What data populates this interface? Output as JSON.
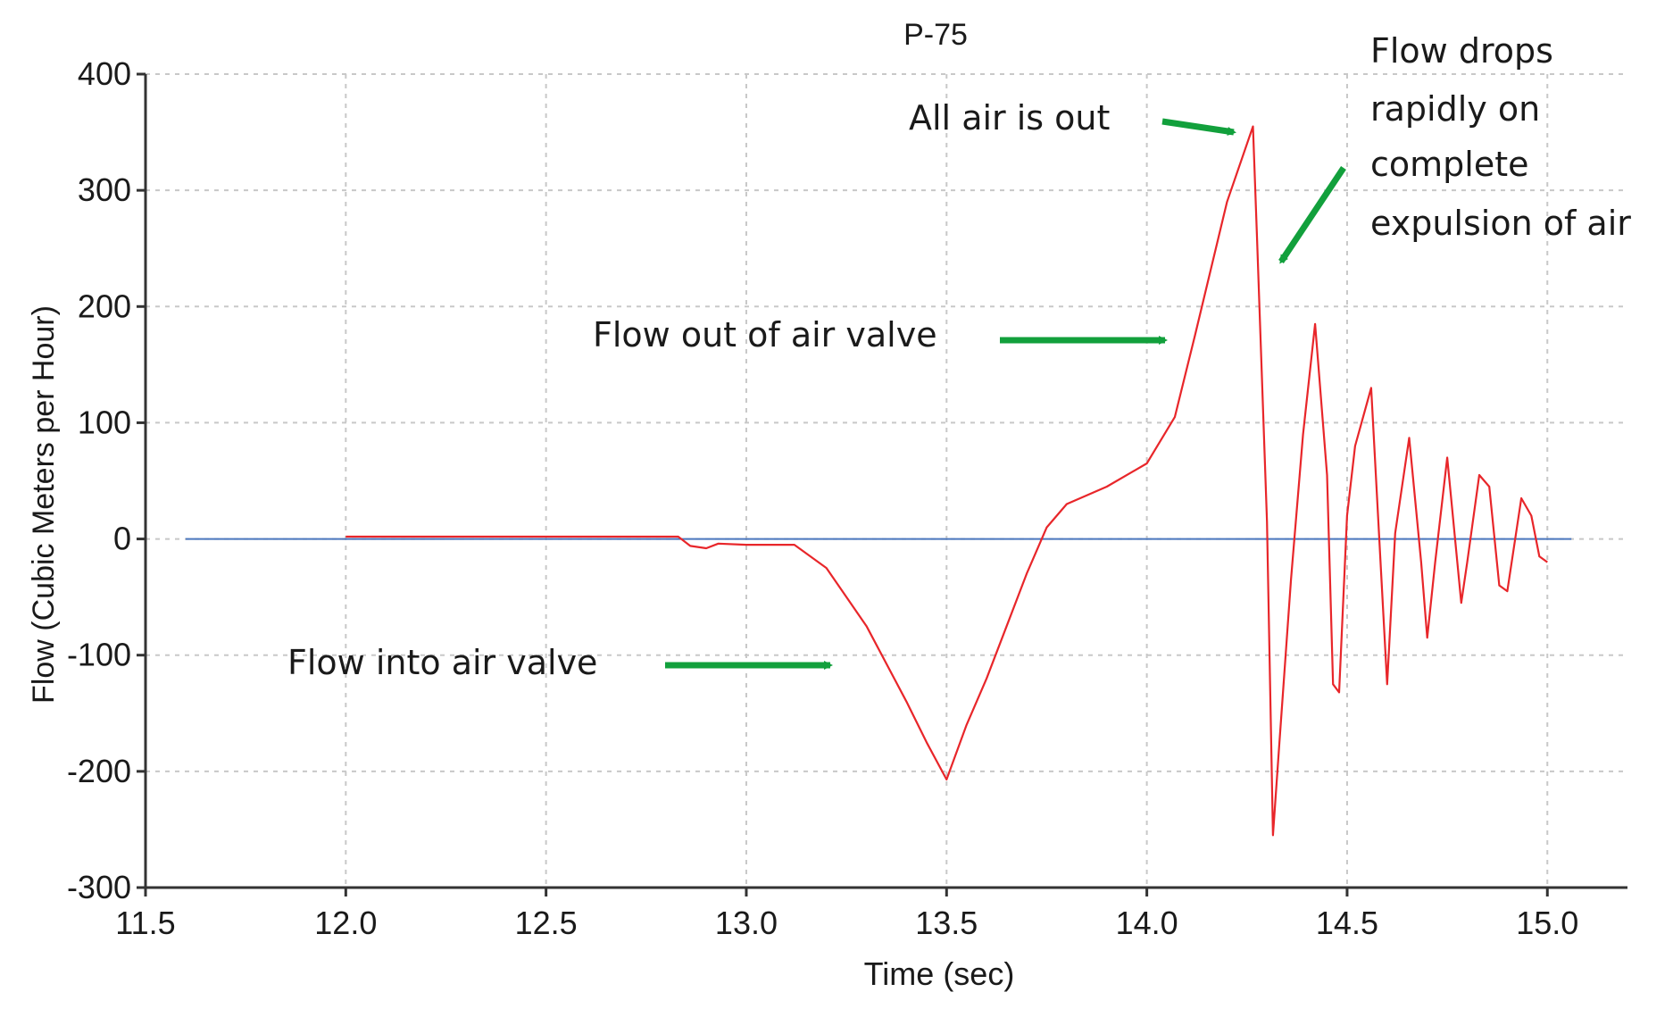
{
  "chart_data": {
    "type": "line",
    "title": "P-75",
    "xlabel": "Time (sec)",
    "ylabel": "Flow (Cubic Meters per Hour)",
    "xlim": [
      11.5,
      15.2
    ],
    "ylim": [
      -300,
      400
    ],
    "x_ticks": [
      11.5,
      12.0,
      12.5,
      13.0,
      13.5,
      14.0,
      14.5,
      15.0
    ],
    "x_tick_labels": [
      "11.5",
      "12.0",
      "12.5",
      "13.0",
      "13.5",
      "14.0",
      "14.5",
      "15.0"
    ],
    "y_ticks": [
      -300,
      -200,
      -100,
      0,
      100,
      200,
      300,
      400
    ],
    "y_tick_labels": [
      "-300",
      "-200",
      "-100",
      "0",
      "100",
      "200",
      "300",
      "400"
    ],
    "grid": true,
    "series": [
      {
        "color": "#e8262a",
        "points": [
          [
            12.0,
            2
          ],
          [
            12.83,
            2
          ],
          [
            12.86,
            -6
          ],
          [
            12.9,
            -8
          ],
          [
            12.93,
            -4
          ],
          [
            13.0,
            -5
          ],
          [
            13.12,
            -5
          ],
          [
            13.2,
            -25
          ],
          [
            13.3,
            -75
          ],
          [
            13.4,
            -140
          ],
          [
            13.45,
            -175
          ],
          [
            13.5,
            -207
          ],
          [
            13.55,
            -160
          ],
          [
            13.6,
            -120
          ],
          [
            13.65,
            -75
          ],
          [
            13.7,
            -30
          ],
          [
            13.75,
            10
          ],
          [
            13.8,
            30
          ],
          [
            13.9,
            45
          ],
          [
            14.0,
            65
          ],
          [
            14.07,
            105
          ],
          [
            14.12,
            175
          ],
          [
            14.2,
            290
          ],
          [
            14.265,
            355
          ],
          [
            14.275,
            260
          ],
          [
            14.3,
            15
          ],
          [
            14.315,
            -255
          ],
          [
            14.33,
            -180
          ],
          [
            14.36,
            -35
          ],
          [
            14.39,
            90
          ],
          [
            14.42,
            185
          ],
          [
            14.45,
            55
          ],
          [
            14.465,
            -125
          ],
          [
            14.48,
            -132
          ],
          [
            14.5,
            20
          ],
          [
            14.52,
            80
          ],
          [
            14.56,
            130
          ],
          [
            14.585,
            -30
          ],
          [
            14.6,
            -125
          ],
          [
            14.62,
            5
          ],
          [
            14.655,
            87
          ],
          [
            14.685,
            -20
          ],
          [
            14.7,
            -85
          ],
          [
            14.72,
            -20
          ],
          [
            14.75,
            70
          ],
          [
            14.785,
            -55
          ],
          [
            14.8,
            -20
          ],
          [
            14.83,
            55
          ],
          [
            14.855,
            45
          ],
          [
            14.88,
            -40
          ],
          [
            14.9,
            -45
          ],
          [
            14.935,
            35
          ],
          [
            14.96,
            20
          ],
          [
            14.98,
            -15
          ],
          [
            15.0,
            -20
          ]
        ]
      },
      {
        "color": "#4b77be",
        "points": [
          [
            11.6,
            0
          ],
          [
            15.06,
            0
          ]
        ]
      }
    ],
    "annotations": [
      "Flow drops rapidly on complete expulsion of air",
      "All air is out",
      "Flow out of air valve",
      "Flow into air valve"
    ]
  },
  "annotations": {
    "air_out": "All air is out",
    "flow_drops": [
      "Flow drops",
      "rapidly on",
      "complete",
      "expulsion of air"
    ],
    "flow_out": "Flow out of air valve",
    "flow_into": "Flow into air valve"
  },
  "colors": {
    "arrow": "#12a03c",
    "grid": "#c8c8c8",
    "axis": "#333333"
  }
}
